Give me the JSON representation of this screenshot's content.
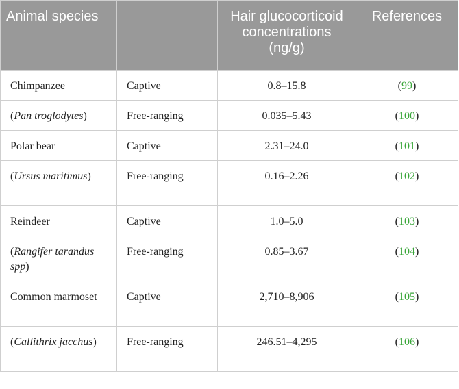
{
  "headers": {
    "species": "Animal species",
    "status": "",
    "concentration": "Hair glucocorticoid concentrations (ng/g)",
    "references": "References"
  },
  "rows": [
    {
      "species": "Chimpanzee",
      "species_italic": false,
      "status": "Captive",
      "value": "0.8–15.8",
      "ref": "99"
    },
    {
      "species": "(Pan troglodytes)",
      "species_italic": true,
      "status": "Free-ranging",
      "value": "0.035–5.43",
      "ref": "100"
    },
    {
      "species": "Polar bear",
      "species_italic": false,
      "status": "Captive",
      "value": "2.31–24.0",
      "ref": "101"
    },
    {
      "species": "(Ursus maritimus)",
      "species_italic": true,
      "status": "Free-ranging",
      "value": "0.16–2.26",
      "ref": "102"
    },
    {
      "species": "Reindeer",
      "species_italic": false,
      "status": "Captive",
      "value": "1.0–5.0",
      "ref": "103"
    },
    {
      "species": "(Rangifer tarandus spp)",
      "species_italic": true,
      "status": "Free-ranging",
      "value": "0.85–3.67",
      "ref": "104"
    },
    {
      "species": "Common marmoset",
      "species_italic": false,
      "status": "Captive",
      "value": "2,710–8,906",
      "ref": "105"
    },
    {
      "species": "(Callithrix jacchus)",
      "species_italic": true,
      "status": "Free-ranging",
      "value": "246.51–4,295",
      "ref": "106"
    }
  ],
  "colors": {
    "header_bg": "#999999",
    "header_text": "#ffffff",
    "reference_link": "#3aa63a",
    "border": "#cfcfcf"
  }
}
